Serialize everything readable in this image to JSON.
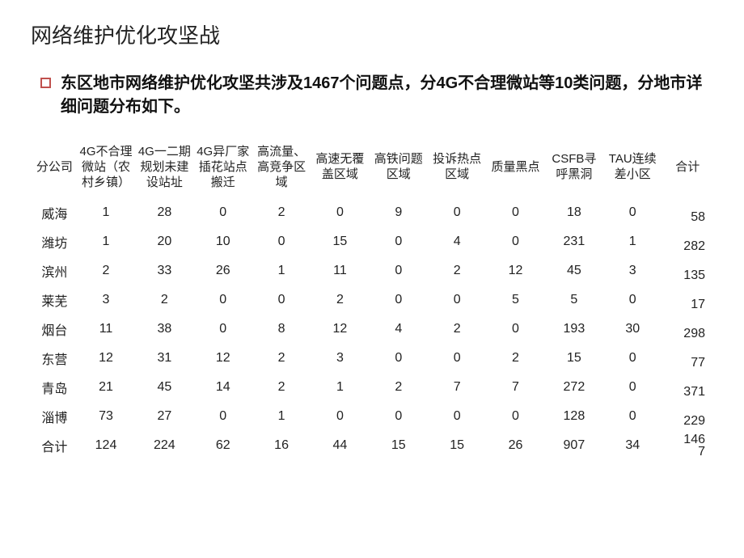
{
  "title": "网络维护优化攻坚战",
  "bullet": "东区地市网络维护优化攻坚共涉及1467个问题点，分4G不合理微站等10类问题，分地市详细问题分布如下。",
  "table": {
    "columns": [
      "分公司",
      "4G不合理微站（农村乡镇）",
      "4G一二期规划未建设站址",
      "4G异厂家插花站点搬迁",
      "高流量、高竞争区域",
      "高速无覆盖区域",
      "高铁问题区域",
      "投诉热点区域",
      "质量黑点",
      "CSFB寻呼黑洞",
      "TAU连续差小区",
      "合计"
    ],
    "rows": [
      [
        "威海",
        "1",
        "28",
        "0",
        "2",
        "0",
        "9",
        "0",
        "0",
        "18",
        "0",
        "58"
      ],
      [
        "潍坊",
        "1",
        "20",
        "10",
        "0",
        "15",
        "0",
        "4",
        "0",
        "231",
        "1",
        "282"
      ],
      [
        "滨州",
        "2",
        "33",
        "26",
        "1",
        "11",
        "0",
        "2",
        "12",
        "45",
        "3",
        "135"
      ],
      [
        "莱芜",
        "3",
        "2",
        "0",
        "0",
        "2",
        "0",
        "0",
        "5",
        "5",
        "0",
        "17"
      ],
      [
        "烟台",
        "11",
        "38",
        "0",
        "8",
        "12",
        "4",
        "2",
        "0",
        "193",
        "30",
        "298"
      ],
      [
        "东营",
        "12",
        "31",
        "12",
        "2",
        "3",
        "0",
        "0",
        "2",
        "15",
        "0",
        "77"
      ],
      [
        "青岛",
        "21",
        "45",
        "14",
        "2",
        "1",
        "2",
        "7",
        "7",
        "272",
        "0",
        "371"
      ],
      [
        "淄博",
        "73",
        "27",
        "0",
        "1",
        "0",
        "0",
        "0",
        "0",
        "128",
        "0",
        "229"
      ],
      [
        "合计",
        "124",
        "224",
        "62",
        "16",
        "44",
        "15",
        "15",
        "26",
        "907",
        "34",
        "1467"
      ]
    ],
    "header_fontsize": 15,
    "cell_fontsize": 16,
    "text_color": "#222222",
    "background_color": "#ffffff",
    "bullet_border_color": "#c0504d"
  }
}
